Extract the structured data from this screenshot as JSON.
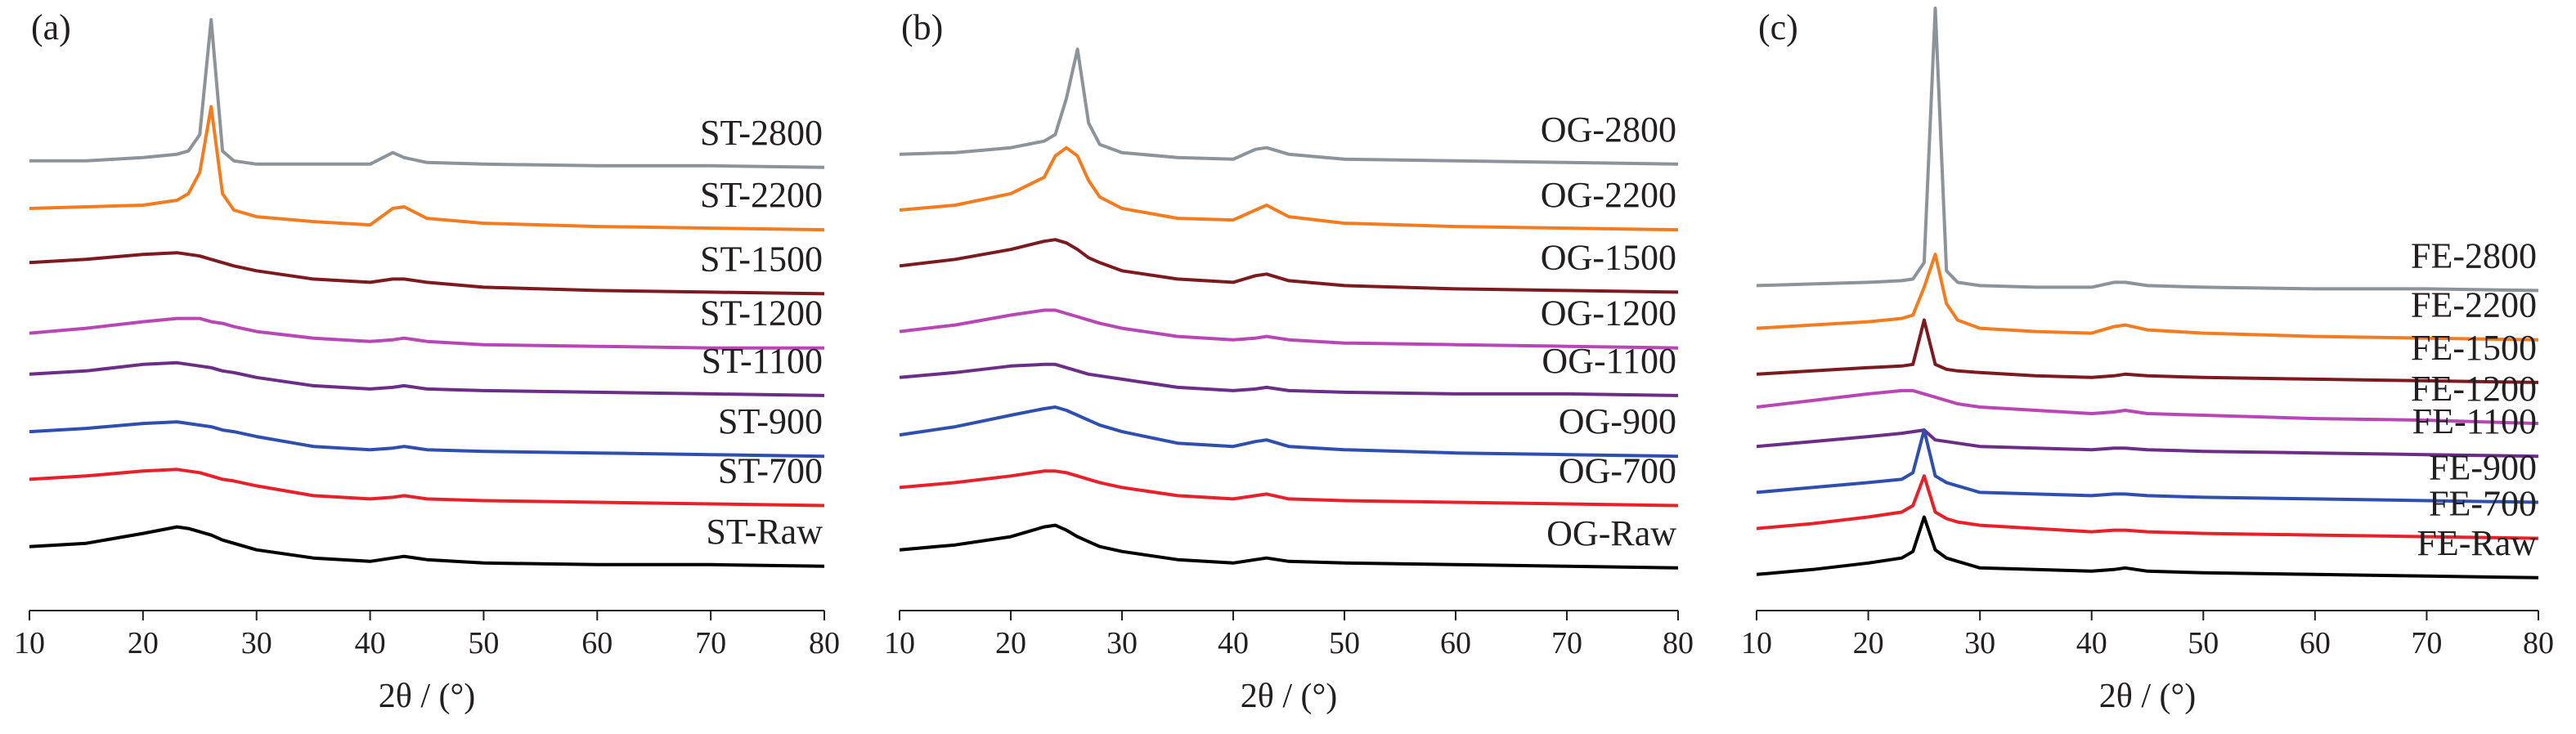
{
  "chart_data": [
    {
      "type": "line",
      "panel_label": "(a)",
      "xlabel": "2θ / (°)",
      "xlim": [
        10,
        80
      ],
      "xticks": [
        10,
        20,
        30,
        40,
        50,
        60,
        70,
        80
      ],
      "ylim": [
        0,
        370
      ],
      "x": [
        10,
        15,
        20,
        23,
        24,
        25,
        26,
        27,
        28,
        30,
        35,
        40,
        42,
        43,
        45,
        50,
        60,
        70,
        80
      ],
      "series": [
        {
          "name": "ST-2800",
          "color": "#8c9399",
          "values": [
            274,
            274,
            276,
            278,
            280,
            290,
            360,
            280,
            274,
            272,
            272,
            272,
            279,
            276,
            273,
            272,
            271,
            271,
            270
          ]
        },
        {
          "name": "ST-2200",
          "color": "#f47c20",
          "values": [
            245,
            246,
            247,
            250,
            254,
            267,
            307,
            254,
            244,
            240,
            237,
            235,
            245,
            246,
            239,
            236,
            234,
            233,
            232
          ]
        },
        {
          "name": "ST-1500",
          "color": "#7b1a1f",
          "values": [
            212,
            214,
            217,
            218,
            217,
            216,
            214,
            212,
            210,
            207,
            202,
            200,
            202,
            202,
            200,
            197,
            195,
            194,
            193
          ]
        },
        {
          "name": "ST-1200",
          "color": "#b847b5",
          "values": [
            169,
            172,
            176,
            178,
            178,
            178,
            176,
            175,
            173,
            170,
            166,
            164,
            165,
            166,
            164,
            162,
            161,
            160,
            160
          ]
        },
        {
          "name": "ST-1100",
          "color": "#6b2d86",
          "values": [
            144,
            146,
            150,
            151,
            150,
            149,
            148,
            146,
            145,
            142,
            137,
            135,
            136,
            137,
            135,
            134,
            133,
            132,
            131
          ]
        },
        {
          "name": "ST-900",
          "color": "#2e4fae",
          "values": [
            109,
            111,
            114,
            115,
            114,
            113,
            112,
            110,
            109,
            106,
            100,
            98,
            99,
            100,
            98,
            97,
            96,
            95,
            94
          ]
        },
        {
          "name": "ST-700",
          "color": "#e8202a",
          "values": [
            80,
            82,
            85,
            86,
            85,
            84,
            82,
            80,
            79,
            76,
            70,
            68,
            69,
            70,
            68,
            67,
            66,
            65,
            64
          ]
        },
        {
          "name": "ST-Raw",
          "color": "#000000",
          "values": [
            39,
            41,
            47,
            51,
            50,
            48,
            46,
            43,
            41,
            37,
            32,
            30,
            32,
            33,
            31,
            29,
            28,
            28,
            27
          ]
        }
      ]
    },
    {
      "type": "line",
      "panel_label": "(b)",
      "xlabel": "2θ / (°)",
      "xlim": [
        10,
        80
      ],
      "xticks": [
        10,
        20,
        30,
        40,
        50,
        60,
        70,
        80
      ],
      "ylim": [
        0,
        370
      ],
      "x": [
        10,
        15,
        20,
        23,
        24,
        25,
        26,
        27,
        28,
        30,
        35,
        40,
        42,
        43,
        45,
        50,
        60,
        70,
        80
      ],
      "series": [
        {
          "name": "OG-2800",
          "color": "#8c9399",
          "values": [
            278,
            279,
            282,
            286,
            290,
            312,
            342,
            297,
            284,
            279,
            276,
            275,
            281,
            282,
            278,
            275,
            274,
            273,
            272
          ]
        },
        {
          "name": "OG-2200",
          "color": "#f47c20",
          "values": [
            244,
            247,
            254,
            264,
            277,
            282,
            277,
            262,
            252,
            245,
            239,
            238,
            244,
            247,
            240,
            236,
            234,
            233,
            232
          ]
        },
        {
          "name": "OG-1500",
          "color": "#7b1a1f",
          "values": [
            210,
            214,
            220,
            225,
            226,
            224,
            220,
            215,
            212,
            207,
            202,
            200,
            204,
            205,
            201,
            198,
            196,
            195,
            194
          ]
        },
        {
          "name": "OG-1200",
          "color": "#b847b5",
          "values": [
            170,
            174,
            180,
            183,
            183,
            181,
            179,
            177,
            175,
            172,
            167,
            165,
            166,
            167,
            165,
            163,
            162,
            161,
            160
          ]
        },
        {
          "name": "OG-1100",
          "color": "#6b2d86",
          "values": [
            142,
            145,
            149,
            150,
            150,
            148,
            146,
            144,
            143,
            141,
            136,
            134,
            135,
            136,
            134,
            133,
            132,
            132,
            131
          ]
        },
        {
          "name": "OG-900",
          "color": "#2e4fae",
          "values": [
            107,
            112,
            119,
            123,
            124,
            122,
            119,
            116,
            113,
            109,
            102,
            100,
            103,
            104,
            100,
            98,
            96,
            95,
            94
          ]
        },
        {
          "name": "OG-700",
          "color": "#e8202a",
          "values": [
            75,
            78,
            82,
            85,
            85,
            84,
            82,
            80,
            78,
            75,
            70,
            68,
            70,
            71,
            68,
            67,
            66,
            65,
            64
          ]
        },
        {
          "name": "OG-Raw",
          "color": "#000000",
          "values": [
            37,
            40,
            45,
            51,
            52,
            49,
            45,
            42,
            39,
            36,
            31,
            29,
            31,
            32,
            30,
            29,
            28,
            27,
            26
          ]
        }
      ]
    },
    {
      "type": "line",
      "panel_label": "(c)",
      "xlabel": "2θ / (°)",
      "xlim": [
        10,
        80
      ],
      "xticks": [
        10,
        20,
        30,
        40,
        50,
        60,
        70,
        80
      ],
      "ylim": [
        0,
        370
      ],
      "x": [
        10,
        15,
        20,
        23,
        24,
        25,
        26,
        27,
        28,
        30,
        35,
        40,
        42,
        43,
        45,
        50,
        60,
        70,
        80
      ],
      "series": [
        {
          "name": "FE-2800",
          "color": "#8c9399",
          "values": [
            198,
            199,
            200,
            201,
            202,
            212,
            367,
            207,
            200,
            198,
            197,
            197,
            200,
            200,
            198,
            197,
            196,
            196,
            195
          ]
        },
        {
          "name": "FE-2200",
          "color": "#f47c20",
          "values": [
            172,
            174,
            176,
            178,
            180,
            197,
            217,
            187,
            177,
            172,
            170,
            169,
            173,
            174,
            171,
            169,
            167,
            166,
            165
          ]
        },
        {
          "name": "FE-1500",
          "color": "#7b1a1f",
          "values": [
            144,
            146,
            148,
            149,
            150,
            177,
            150,
            147,
            146,
            145,
            143,
            142,
            143,
            144,
            143,
            142,
            141,
            140,
            139
          ]
        },
        {
          "name": "FE-1200",
          "color": "#b847b5",
          "values": [
            124,
            128,
            132,
            134,
            134,
            132,
            130,
            128,
            126,
            124,
            122,
            120,
            121,
            122,
            120,
            119,
            117,
            116,
            114
          ]
        },
        {
          "name": "FE-1100",
          "color": "#6b2d86",
          "values": [
            100,
            103,
            106,
            108,
            109,
            110,
            104,
            103,
            102,
            100,
            99,
            98,
            99,
            99,
            98,
            97,
            96,
            95,
            94
          ]
        },
        {
          "name": "FE-900",
          "color": "#2e4fae",
          "values": [
            72,
            75,
            78,
            80,
            84,
            110,
            82,
            78,
            76,
            72,
            71,
            70,
            71,
            71,
            70,
            69,
            68,
            67,
            66
          ]
        },
        {
          "name": "FE-700",
          "color": "#e8202a",
          "values": [
            50,
            53,
            57,
            60,
            64,
            82,
            60,
            56,
            54,
            52,
            50,
            48,
            49,
            49,
            48,
            47,
            46,
            45,
            44
          ]
        },
        {
          "name": "FE-Raw",
          "color": "#000000",
          "values": [
            22,
            25,
            29,
            32,
            36,
            57,
            37,
            32,
            30,
            26,
            25,
            24,
            25,
            26,
            24,
            23,
            22,
            21,
            20
          ]
        }
      ]
    }
  ]
}
